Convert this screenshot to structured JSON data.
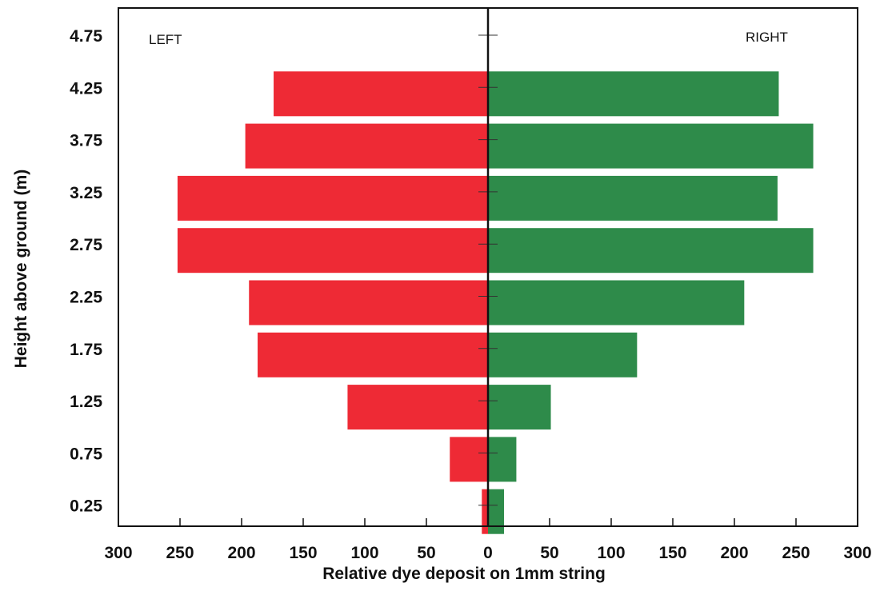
{
  "chart_data": {
    "type": "bar",
    "orientation": "horizontal",
    "layout": "back-to-back",
    "xlabel": "Relative dye deposit  on 1mm string",
    "ylabel": "Height above ground (m)",
    "categories": [
      "0.25",
      "0.75",
      "1.25",
      "1.75",
      "2.25",
      "2.75",
      "3.25",
      "3.75",
      "4.25",
      "4.75"
    ],
    "xlim": [
      -300,
      300
    ],
    "x_ticks": [
      -300,
      -250,
      -200,
      -150,
      -100,
      -50,
      0,
      50,
      100,
      150,
      200,
      250,
      300
    ],
    "x_tick_labels": [
      "300",
      "250",
      "200",
      "150",
      "100",
      "50",
      "0",
      "50",
      "100",
      "150",
      "200",
      "250",
      "300"
    ],
    "grid": false,
    "series": [
      {
        "name": "LEFT",
        "color": "#ee2a35",
        "direction": "left",
        "values": [
          5,
          31,
          114,
          187,
          194,
          252,
          252,
          197,
          174,
          0
        ]
      },
      {
        "name": "RIGHT",
        "color": "#2e8b4a",
        "direction": "right",
        "values": [
          13,
          23,
          51,
          121,
          208,
          264,
          235,
          264,
          236,
          0
        ]
      }
    ]
  }
}
